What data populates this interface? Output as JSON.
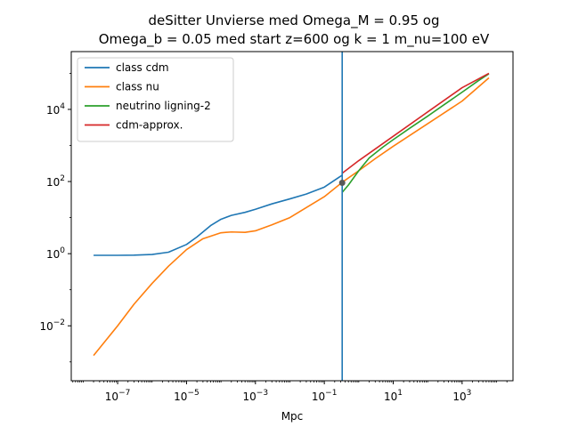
{
  "chart_data": {
    "type": "line",
    "title_line1": "deSitter Unvierse med Omega_M = 0.95 og",
    "title_line2": "Omega_b = 0.05 med start z=600 og k = 1 m_nu=100 eV",
    "xlabel": "Mpc",
    "ylabel": "",
    "x_scale": "log",
    "y_scale": "log",
    "xlim": [
      4.5e-09,
      30000
    ],
    "ylim": [
      0.0003,
      400000
    ],
    "x_ticks": [
      {
        "value": 1e-07,
        "base": "10",
        "exp": "−7"
      },
      {
        "value": 1e-05,
        "base": "10",
        "exp": "−5"
      },
      {
        "value": 0.001,
        "base": "10",
        "exp": "−3"
      },
      {
        "value": 0.1,
        "base": "10",
        "exp": "−1"
      },
      {
        "value": 10.0,
        "base": "10",
        "exp": "1"
      },
      {
        "value": 1000.0,
        "base": "10",
        "exp": "3"
      }
    ],
    "y_ticks": [
      {
        "value": 0.01,
        "base": "10",
        "exp": "−2"
      },
      {
        "value": 1.0,
        "base": "10",
        "exp": "0"
      },
      {
        "value": 100.0,
        "base": "10",
        "exp": "2"
      },
      {
        "value": 10000.0,
        "base": "10",
        "exp": "4"
      }
    ],
    "grid": false,
    "legend": "upper-left",
    "vline": {
      "x": 0.33,
      "color": "#1f77b4"
    },
    "marker": {
      "x": 0.33,
      "y": 92,
      "color": "#595959"
    },
    "series": [
      {
        "name": "class cdm",
        "color": "#1f77b4",
        "x": [
          2e-08,
          1e-07,
          3e-07,
          1e-06,
          3e-06,
          1e-05,
          2e-05,
          5e-05,
          0.0001,
          0.0002,
          0.0005,
          0.001,
          0.003,
          0.01,
          0.03,
          0.1,
          0.33
        ],
        "y": [
          0.9,
          0.9,
          0.91,
          0.95,
          1.1,
          1.8,
          2.9,
          6,
          9,
          11.5,
          14,
          17,
          24,
          33,
          45,
          70,
          150
        ]
      },
      {
        "name": "class nu",
        "color": "#ff7f0e",
        "x": [
          2e-08,
          1e-07,
          3e-07,
          1e-06,
          3e-06,
          1e-05,
          3e-05,
          0.0001,
          0.0002,
          0.0005,
          0.001,
          0.003,
          0.01,
          0.1,
          0.33,
          1,
          3,
          10,
          100,
          1000,
          6000
        ],
        "y": [
          0.0015,
          0.01,
          0.04,
          0.15,
          0.45,
          1.3,
          2.6,
          3.8,
          4.0,
          3.9,
          4.3,
          6.3,
          10,
          38,
          95,
          200,
          430,
          950,
          4000,
          17000,
          75000
        ]
      },
      {
        "name": "neutrino ligning-2",
        "color": "#2ca02c",
        "x": [
          0.33,
          0.5,
          1,
          2,
          5,
          10,
          30,
          100,
          300,
          1000,
          3000,
          6000
        ],
        "y": [
          50,
          80,
          200,
          450,
          900,
          1450,
          3000,
          6500,
          13500,
          30000,
          63000,
          97000
        ]
      },
      {
        "name": "cdm-approx.",
        "color": "#d62728",
        "x": [
          0.33,
          1,
          10,
          100,
          1000,
          6000
        ],
        "y": [
          170,
          380,
          1800,
          8500,
          40000,
          100000
        ]
      }
    ]
  }
}
